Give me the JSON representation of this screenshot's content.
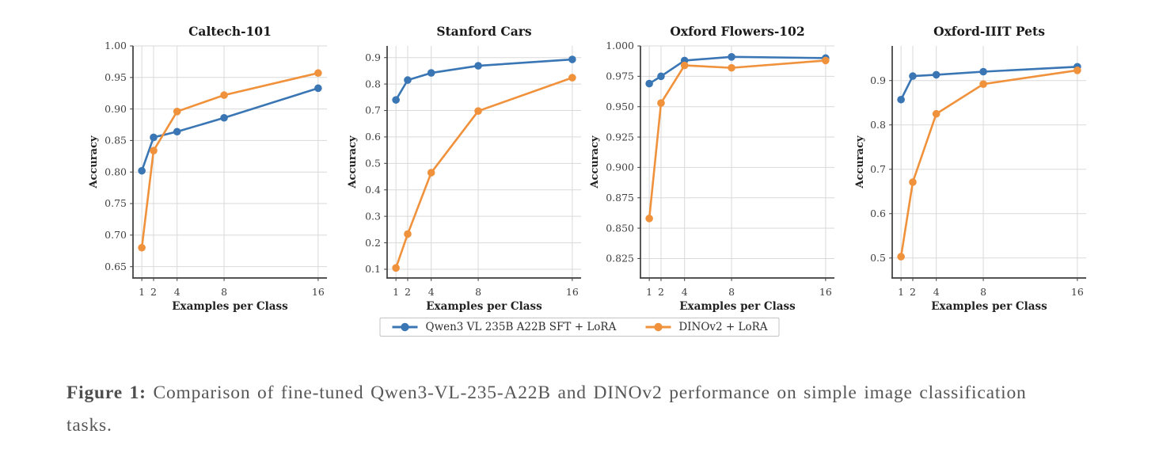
{
  "figure": {
    "background": "#ffffff"
  },
  "legend": {
    "position": "below-figure",
    "items": [
      {
        "label": "Qwen3 VL 235B A22B SFT + LoRA",
        "color": "#3a76b4"
      },
      {
        "label": "DINOv2 + LoRA",
        "color": "#f0913c"
      }
    ]
  },
  "caption": {
    "label": "Figure 1:",
    "text": "Comparison of fine-tuned Qwen3-VL-235-A22B and DINOv2 performance on simple image classification tasks."
  },
  "chart_data": [
    {
      "type": "line",
      "title": "Caltech-101",
      "xlabel": "Examples per Class",
      "ylabel": "Accuracy",
      "x": [
        1,
        2,
        4,
        8,
        16
      ],
      "xticks": [
        1,
        2,
        4,
        8,
        16
      ],
      "xlim": [
        0.25,
        16.75
      ],
      "ylim": [
        0.632,
        1.0
      ],
      "yticks": [
        0.65,
        0.7,
        0.75,
        0.8,
        0.85,
        0.9,
        0.95,
        1.0
      ],
      "ytick_decimals": 2,
      "grid": true,
      "series": [
        {
          "name": "Qwen3 VL 235B A22B SFT + LoRA",
          "color": "#3a76b4",
          "values": [
            0.802,
            0.855,
            0.864,
            0.886,
            0.933
          ]
        },
        {
          "name": "DINOv2 + LoRA",
          "color": "#f0913c",
          "values": [
            0.68,
            0.834,
            0.896,
            0.922,
            0.957
          ]
        }
      ]
    },
    {
      "type": "line",
      "title": "Stanford Cars",
      "xlabel": "Examples per Class",
      "ylabel": "Accuracy",
      "x": [
        1,
        2,
        4,
        8,
        16
      ],
      "xticks": [
        1,
        2,
        4,
        8,
        16
      ],
      "xlim": [
        0.25,
        16.75
      ],
      "ylim": [
        0.067,
        0.944
      ],
      "yticks": [
        0.1,
        0.2,
        0.3,
        0.4,
        0.5,
        0.6,
        0.7,
        0.8,
        0.9
      ],
      "ytick_decimals": 1,
      "grid": true,
      "series": [
        {
          "name": "Qwen3 VL 235B A22B SFT + LoRA",
          "color": "#3a76b4",
          "values": [
            0.74,
            0.815,
            0.842,
            0.869,
            0.893
          ]
        },
        {
          "name": "DINOv2 + LoRA",
          "color": "#f0913c",
          "values": [
            0.105,
            0.233,
            0.465,
            0.698,
            0.824
          ]
        }
      ]
    },
    {
      "type": "line",
      "title": "Oxford Flowers-102",
      "xlabel": "Examples per Class",
      "ylabel": "Accuracy",
      "x": [
        1,
        2,
        4,
        8,
        16
      ],
      "xticks": [
        1,
        2,
        4,
        8,
        16
      ],
      "xlim": [
        0.25,
        16.75
      ],
      "ylim": [
        0.809,
        1.0
      ],
      "yticks": [
        0.825,
        0.85,
        0.875,
        0.9,
        0.925,
        0.95,
        0.975,
        1.0
      ],
      "ytick_decimals": 3,
      "grid": true,
      "series": [
        {
          "name": "Qwen3 VL 235B A22B SFT + LoRA",
          "color": "#3a76b4",
          "values": [
            0.969,
            0.975,
            0.988,
            0.991,
            0.99
          ]
        },
        {
          "name": "DINOv2 + LoRA",
          "color": "#f0913c",
          "values": [
            0.858,
            0.953,
            0.984,
            0.982,
            0.988
          ]
        }
      ]
    },
    {
      "type": "line",
      "title": "Oxford-IIIT Pets",
      "xlabel": "Examples per Class",
      "ylabel": "Accuracy",
      "x": [
        1,
        2,
        4,
        8,
        16
      ],
      "xticks": [
        1,
        2,
        4,
        8,
        16
      ],
      "xlim": [
        0.25,
        16.75
      ],
      "ylim": [
        0.455,
        0.978
      ],
      "yticks": [
        0.5,
        0.6,
        0.7,
        0.8,
        0.9
      ],
      "ytick_decimals": 1,
      "grid": true,
      "series": [
        {
          "name": "Qwen3 VL 235B A22B SFT + LoRA",
          "color": "#3a76b4",
          "values": [
            0.857,
            0.91,
            0.913,
            0.92,
            0.931
          ]
        },
        {
          "name": "DINOv2 + LoRA",
          "color": "#f0913c",
          "values": [
            0.503,
            0.671,
            0.825,
            0.892,
            0.923
          ]
        }
      ]
    }
  ]
}
